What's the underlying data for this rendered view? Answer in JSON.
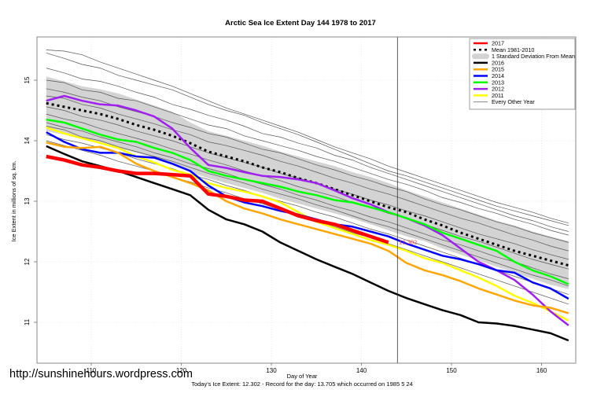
{
  "chart_data": {
    "type": "line",
    "title": "Arctic Sea Ice Extent Day 144 1978 to 2017",
    "xlabel": "Day of Year",
    "ylabel": "Ice Extent in millions of sq. km.",
    "subtitle": "Today's Ice Extent: 12.302  - Record for the day: 13.705 which occurred on 1985 5 24",
    "xlim": [
      104,
      164
    ],
    "ylim": [
      10.3,
      15.7
    ],
    "x_ticks": [
      110,
      120,
      130,
      140,
      150,
      160
    ],
    "y_ticks": [
      11,
      12,
      13,
      14,
      15
    ],
    "grid": true,
    "current_day_marker": 144,
    "current_value_label": "12.302",
    "legend_position": "top-right",
    "x": [
      105,
      107,
      109,
      111,
      113,
      115,
      117,
      119,
      121,
      123,
      125,
      127,
      129,
      131,
      133,
      135,
      137,
      139,
      141,
      143,
      145,
      147,
      149,
      151,
      153,
      155,
      157,
      159,
      161,
      163
    ],
    "band": {
      "name": "1 Standard Deviation From Mean",
      "upper": [
        15.06,
        14.98,
        14.9,
        14.85,
        14.78,
        14.68,
        14.58,
        14.48,
        14.3,
        14.16,
        14.08,
        14.0,
        13.92,
        13.82,
        13.74,
        13.66,
        13.58,
        13.48,
        13.4,
        13.3,
        13.18,
        13.08,
        12.98,
        12.88,
        12.78,
        12.68,
        12.6,
        12.5,
        12.42,
        12.34
      ],
      "lower": [
        14.16,
        14.1,
        14.04,
        13.96,
        13.88,
        13.8,
        13.72,
        13.62,
        13.48,
        13.38,
        13.3,
        13.22,
        13.14,
        13.04,
        12.96,
        12.88,
        12.8,
        12.72,
        12.62,
        12.52,
        12.42,
        12.34,
        12.22,
        12.12,
        12.02,
        11.92,
        11.82,
        11.72,
        11.62,
        11.55
      ]
    },
    "series": [
      {
        "name": "2017",
        "color": "#ff0000",
        "width": 4.5,
        "values": [
          13.74,
          13.68,
          13.6,
          13.56,
          13.5,
          13.46,
          13.46,
          13.44,
          13.42,
          13.12,
          13.08,
          13.02,
          13.0,
          12.88,
          12.76,
          12.68,
          12.62,
          12.52,
          12.42,
          12.32
        ]
      },
      {
        "name": "Mean 1981-2010",
        "color": "#000000",
        "dash": true,
        "values": [
          14.62,
          14.56,
          14.5,
          14.44,
          14.36,
          14.26,
          14.18,
          14.08,
          13.96,
          13.82,
          13.74,
          13.66,
          13.56,
          13.48,
          13.38,
          13.3,
          13.2,
          13.1,
          13.0,
          12.9,
          12.82,
          12.7,
          12.6,
          12.48,
          12.38,
          12.28,
          12.18,
          12.1,
          12.02,
          11.94
        ]
      },
      {
        "name": "2016",
        "color": "#000000",
        "width": 2.5,
        "values": [
          13.91,
          13.78,
          13.66,
          13.58,
          13.5,
          13.4,
          13.3,
          13.2,
          13.1,
          12.86,
          12.7,
          12.62,
          12.5,
          12.32,
          12.18,
          12.04,
          11.92,
          11.8,
          11.66,
          11.52,
          11.4,
          11.3,
          11.2,
          11.12,
          11.0,
          10.98,
          10.94,
          10.88,
          10.82,
          10.7
        ]
      },
      {
        "name": "2015",
        "color": "#ffa500",
        "width": 2.5,
        "values": [
          13.97,
          13.9,
          13.88,
          13.9,
          13.8,
          13.62,
          13.5,
          13.4,
          13.3,
          13.18,
          13.0,
          12.88,
          12.8,
          12.7,
          12.62,
          12.54,
          12.46,
          12.38,
          12.3,
          12.18,
          11.98,
          11.86,
          11.78,
          11.68,
          11.56,
          11.46,
          11.36,
          11.28,
          11.24,
          11.15
        ]
      },
      {
        "name": "2014",
        "color": "#0000ff",
        "width": 2.5,
        "values": [
          14.14,
          13.98,
          13.86,
          13.8,
          13.8,
          13.74,
          13.72,
          13.62,
          13.5,
          13.26,
          13.08,
          12.98,
          12.92,
          12.84,
          12.78,
          12.7,
          12.62,
          12.58,
          12.5,
          12.42,
          12.3,
          12.2,
          12.1,
          12.04,
          11.96,
          11.86,
          11.82,
          11.66,
          11.56,
          11.39
        ]
      },
      {
        "name": "2013",
        "color": "#00ff00",
        "width": 2.5,
        "values": [
          14.35,
          14.3,
          14.2,
          14.1,
          14.02,
          13.98,
          13.88,
          13.8,
          13.68,
          13.5,
          13.42,
          13.36,
          13.3,
          13.24,
          13.16,
          13.1,
          13.02,
          12.98,
          12.9,
          12.82,
          12.72,
          12.62,
          12.48,
          12.38,
          12.28,
          12.18,
          12.0,
          11.86,
          11.76,
          11.63
        ]
      },
      {
        "name": "2012",
        "color": "#a020f0",
        "width": 2.5,
        "values": [
          14.66,
          14.74,
          14.66,
          14.6,
          14.58,
          14.5,
          14.4,
          14.2,
          13.88,
          13.6,
          13.55,
          13.48,
          13.42,
          13.4,
          13.36,
          13.3,
          13.18,
          13.05,
          12.95,
          12.82,
          12.72,
          12.6,
          12.44,
          12.22,
          12.0,
          11.86,
          11.7,
          11.46,
          11.18,
          10.95
        ]
      },
      {
        "name": "2011",
        "color": "#ffff00",
        "width": 2.5,
        "values": [
          14.22,
          14.12,
          14.04,
          13.96,
          13.88,
          13.74,
          13.64,
          13.52,
          13.44,
          13.3,
          13.22,
          13.16,
          13.08,
          12.98,
          12.82,
          12.66,
          12.56,
          12.46,
          12.36,
          12.28,
          12.18,
          12.06,
          11.98,
          11.86,
          11.74,
          11.6,
          11.44,
          11.32,
          11.18,
          11.03
        ]
      },
      {
        "name": "Every Other Year",
        "color": "#555555",
        "width": 0.7,
        "group": [
          [
            15.5,
            15.48,
            15.42,
            15.3,
            15.2,
            15.1,
            15.0,
            14.9,
            14.78,
            14.66,
            14.54,
            14.44,
            14.34,
            14.24,
            14.14,
            14.02,
            13.9,
            13.8,
            13.7,
            13.58,
            13.48,
            13.38,
            13.28,
            13.18,
            13.08,
            12.98,
            12.9,
            12.82,
            12.72,
            12.64
          ],
          [
            15.45,
            15.36,
            15.26,
            15.2,
            15.08,
            15.0,
            14.92,
            14.84,
            14.72,
            14.6,
            14.5,
            14.42,
            14.3,
            14.2,
            14.1,
            13.98,
            13.86,
            13.74,
            13.62,
            13.5,
            13.42,
            13.32,
            13.22,
            13.12,
            13.02,
            12.92,
            12.84,
            12.76,
            12.68,
            12.6
          ],
          [
            15.2,
            15.12,
            15.02,
            14.98,
            14.9,
            14.8,
            14.72,
            14.6,
            14.52,
            14.42,
            14.34,
            14.24,
            14.12,
            14.06,
            13.96,
            13.88,
            13.76,
            13.68,
            13.56,
            13.46,
            13.36,
            13.26,
            13.16,
            13.06,
            12.96,
            12.86,
            12.76,
            12.68,
            12.58,
            12.5
          ],
          [
            15.0,
            14.96,
            14.84,
            14.8,
            14.7,
            14.66,
            14.56,
            14.46,
            14.36,
            14.26,
            14.2,
            14.08,
            14.0,
            13.92,
            13.84,
            13.74,
            13.66,
            13.56,
            13.46,
            13.36,
            13.28,
            13.18,
            13.06,
            12.98,
            12.88,
            12.8,
            12.7,
            12.62,
            12.52,
            12.44
          ],
          [
            14.86,
            14.8,
            14.72,
            14.66,
            14.56,
            14.48,
            14.4,
            14.3,
            14.22,
            14.12,
            14.06,
            13.96,
            13.86,
            13.8,
            13.7,
            13.6,
            13.52,
            13.42,
            13.34,
            13.24,
            13.16,
            13.04,
            12.94,
            12.86,
            12.76,
            12.66,
            12.58,
            12.48,
            12.4,
            12.32
          ],
          [
            14.74,
            14.7,
            14.6,
            14.54,
            14.44,
            14.36,
            14.28,
            14.18,
            14.1,
            13.98,
            13.92,
            13.84,
            13.76,
            13.66,
            13.58,
            13.48,
            13.38,
            13.3,
            13.2,
            13.12,
            13.02,
            12.92,
            12.82,
            12.72,
            12.64,
            12.54,
            12.44,
            12.36,
            12.26,
            12.18
          ],
          [
            14.56,
            14.5,
            14.4,
            14.34,
            14.26,
            14.16,
            14.08,
            14.0,
            13.9,
            13.8,
            13.72,
            13.64,
            13.56,
            13.46,
            13.38,
            13.3,
            13.2,
            13.12,
            13.02,
            12.94,
            12.84,
            12.76,
            12.66,
            12.56,
            12.46,
            12.38,
            12.3,
            12.2,
            12.12,
            12.04
          ],
          [
            14.44,
            14.36,
            14.3,
            14.2,
            14.12,
            14.04,
            13.96,
            13.86,
            13.78,
            13.68,
            13.6,
            13.5,
            13.42,
            13.34,
            13.24,
            13.16,
            13.08,
            12.98,
            12.9,
            12.8,
            12.72,
            12.62,
            12.52,
            12.42,
            12.34,
            12.24,
            12.14,
            12.04,
            11.96,
            11.88
          ],
          [
            14.3,
            14.22,
            14.16,
            14.06,
            13.98,
            13.9,
            13.8,
            13.72,
            13.62,
            13.54,
            13.46,
            13.36,
            13.28,
            13.2,
            13.1,
            13.02,
            12.92,
            12.84,
            12.74,
            12.66,
            12.56,
            12.46,
            12.36,
            12.28,
            12.18,
            12.08,
            12.0,
            11.9,
            11.8,
            11.72
          ],
          [
            14.1,
            14.02,
            13.96,
            13.88,
            13.8,
            13.7,
            13.62,
            13.54,
            13.44,
            13.36,
            13.26,
            13.18,
            13.08,
            13.0,
            12.92,
            12.82,
            12.74,
            12.64,
            12.54,
            12.46,
            12.36,
            12.26,
            12.16,
            12.06,
            11.96,
            11.86,
            11.76,
            11.66,
            11.56,
            11.46
          ],
          [
            14.0,
            13.92,
            13.84,
            13.76,
            13.66,
            13.58,
            13.5,
            13.4,
            13.32,
            13.22,
            13.14,
            13.04,
            12.96,
            12.86,
            12.78,
            12.68,
            12.58,
            12.48,
            12.4,
            12.3,
            12.2,
            12.1,
            12.0,
            11.9,
            11.8,
            11.7,
            11.6,
            11.5,
            11.4,
            11.3
          ],
          [
            14.24,
            14.18,
            14.06,
            14.0,
            13.9,
            13.82,
            13.74,
            13.66,
            13.56,
            13.46,
            13.38,
            13.3,
            13.2,
            13.12,
            13.04,
            12.94,
            12.86,
            12.76,
            12.66,
            12.58,
            12.48,
            12.38,
            12.28,
            12.18,
            12.08,
            11.98,
            11.88,
            11.78,
            11.7,
            11.6
          ]
        ]
      }
    ],
    "legend": [
      {
        "label": "2017",
        "style": "line",
        "color": "#ff0000"
      },
      {
        "label": "Mean 1981-2010",
        "style": "dash",
        "color": "#000000"
      },
      {
        "label": "1 Standard Deviation From Mean",
        "style": "band",
        "color": "#d3d3d3"
      },
      {
        "label": "2016",
        "style": "line",
        "color": "#000000"
      },
      {
        "label": "2015",
        "style": "line",
        "color": "#ffa500"
      },
      {
        "label": "2014",
        "style": "line",
        "color": "#0000ff"
      },
      {
        "label": "2013",
        "style": "line",
        "color": "#00ff00"
      },
      {
        "label": "2012",
        "style": "line",
        "color": "#a020f0"
      },
      {
        "label": "2011",
        "style": "line",
        "color": "#ffff00"
      },
      {
        "label": "Every Other Year",
        "style": "thin",
        "color": "#777777"
      }
    ]
  },
  "watermark": "http://sunshinehours.wordpress.com"
}
